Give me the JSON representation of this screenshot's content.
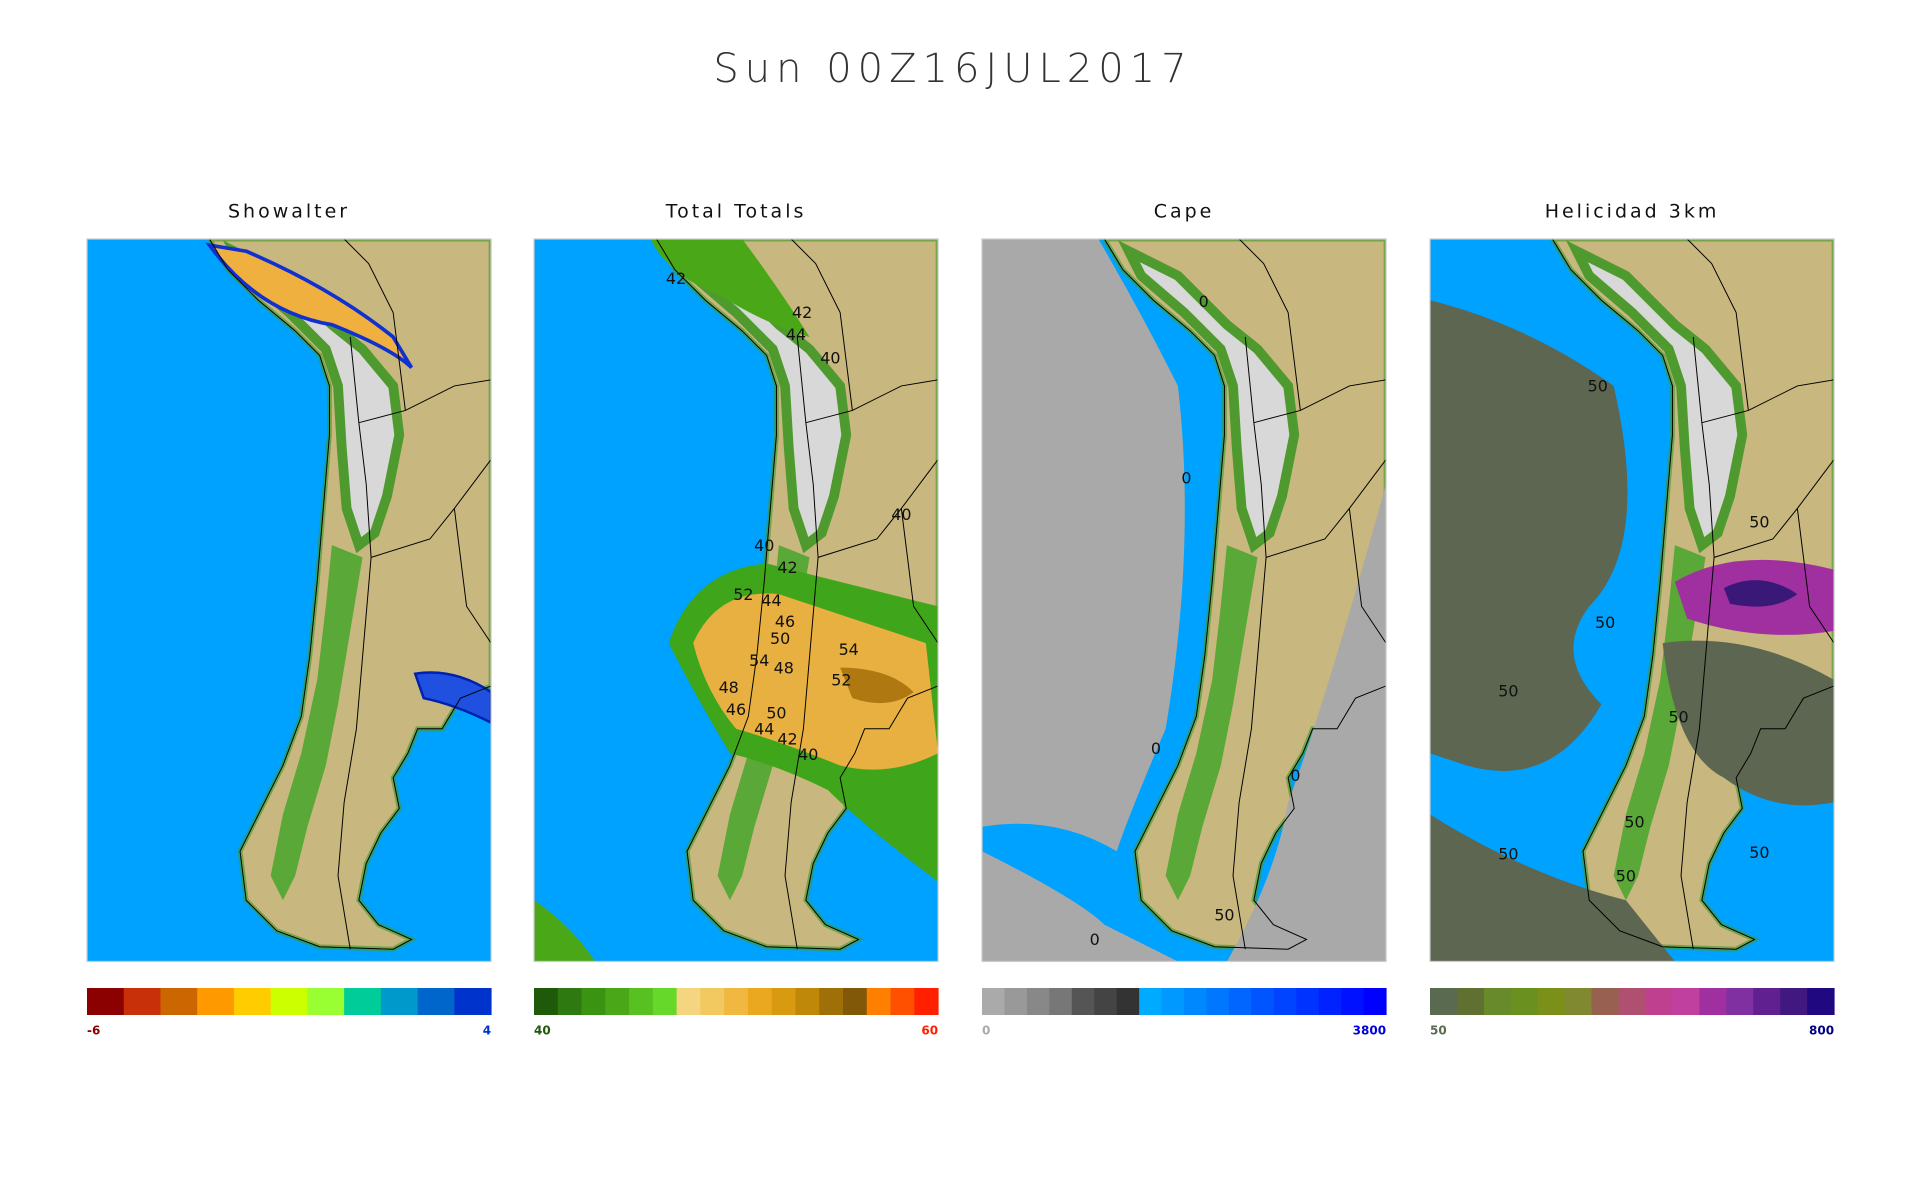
{
  "header": {
    "title": "Sun 00Z16JUL2017"
  },
  "panels": [
    {
      "title": "Showalter",
      "colorbar": {
        "colors": [
          "#8b0000",
          "#c8300a",
          "#cc6600",
          "#ff9900",
          "#ffcc00",
          "#ccff00",
          "#99ff33",
          "#00cc99",
          "#0099cc",
          "#0066cc",
          "#0033cc"
        ],
        "min_label": "-6",
        "max_label": "4",
        "min_color": "#8b0000",
        "max_color": "#0033cc"
      },
      "contour_labels": []
    },
    {
      "title": "Total  Totals",
      "colorbar": {
        "colors": [
          "#1e5a0a",
          "#2e7a10",
          "#3a9412",
          "#4aa818",
          "#58c020",
          "#66d82a",
          "#f5d580",
          "#f2c860",
          "#f0b840",
          "#eaa820",
          "#d89a10",
          "#c08808",
          "#a07008",
          "#805808",
          "#ff8000",
          "#ff5000",
          "#ff2000"
        ],
        "min_label": "40",
        "max_label": "60",
        "min_color": "#1e5a0a",
        "max_color": "#ff2000"
      },
      "contour_labels": [
        "42",
        "42",
        "44",
        "40",
        "40",
        "40",
        "42",
        "52",
        "44",
        "46",
        "50",
        "54",
        "54",
        "48",
        "52",
        "48",
        "46",
        "50",
        "44",
        "42",
        "40"
      ]
    },
    {
      "title": "Cape",
      "colorbar": {
        "colors": [
          "#aaaaaa",
          "#999999",
          "#888888",
          "#777777",
          "#555555",
          "#444444",
          "#333333",
          "#00aaff",
          "#0099ff",
          "#0088ff",
          "#0077ff",
          "#0066ff",
          "#0055ff",
          "#0044ff",
          "#0033ff",
          "#0022ff",
          "#0011ff",
          "#0000ff"
        ],
        "min_label": "0",
        "max_label": "3800",
        "min_color": "#aaaaaa",
        "max_color": "#0000dd"
      },
      "contour_labels": [
        "0",
        "0",
        "0",
        "0",
        "50",
        "0"
      ]
    },
    {
      "title": "Helicidad 3km",
      "colorbar": {
        "colors": [
          "#5a6a50",
          "#607030",
          "#688a2a",
          "#6a9020",
          "#7a9018",
          "#808830",
          "#986050",
          "#b05070",
          "#c04090",
          "#c040a0",
          "#a030a0",
          "#8030a0",
          "#602090",
          "#401880",
          "#200880"
        ],
        "min_label": "50",
        "max_label": "800",
        "min_color": "#5a6a50",
        "max_color": "#000080"
      },
      "contour_labels": [
        "50",
        "50",
        "50",
        "50",
        "50",
        "50",
        "50",
        "50",
        "50"
      ]
    }
  ]
}
